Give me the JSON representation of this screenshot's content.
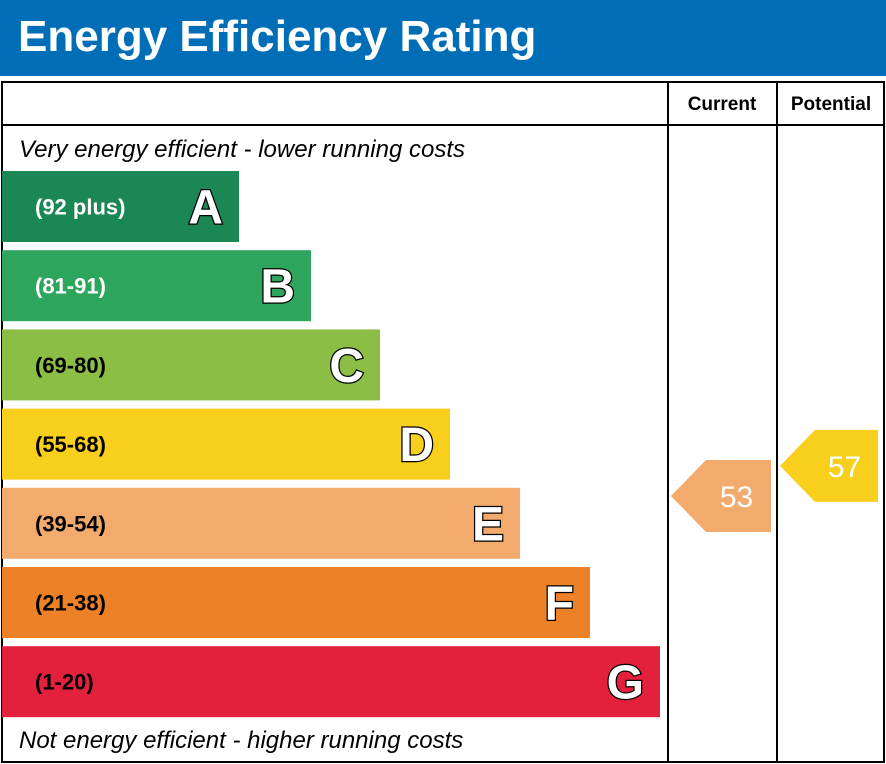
{
  "title": "Energy Efficiency Rating",
  "columns": {
    "current": "Current",
    "potential": "Potential"
  },
  "top_note": "Very energy efficient - lower running costs",
  "bottom_note": "Not energy efficient - higher running costs",
  "chart_data": {
    "type": "bar",
    "title": "Energy Efficiency Rating",
    "bands": [
      {
        "letter": "A",
        "range": "(92 plus)",
        "color": "#1a8755",
        "text_color": "#ffffff"
      },
      {
        "letter": "B",
        "range": "(81-91)",
        "color": "#2ea55d",
        "text_color": "#ffffff"
      },
      {
        "letter": "C",
        "range": "(69-80)",
        "color": "#8cbd45",
        "text_color": "#000000"
      },
      {
        "letter": "D",
        "range": "(55-68)",
        "color": "#f7cf1c",
        "text_color": "#000000"
      },
      {
        "letter": "E",
        "range": "(39-54)",
        "color": "#f2ab6d",
        "text_color": "#000000"
      },
      {
        "letter": "F",
        "range": "(21-38)",
        "color": "#ec8128",
        "text_color": "#000000"
      },
      {
        "letter": "G",
        "range": "(1-20)",
        "color": "#e4213d",
        "text_color": "#000000"
      }
    ],
    "current": {
      "value": 53,
      "band": "E",
      "color": "#f2ab6d"
    },
    "potential": {
      "value": 57,
      "band": "D",
      "color": "#f7cf1c"
    }
  }
}
